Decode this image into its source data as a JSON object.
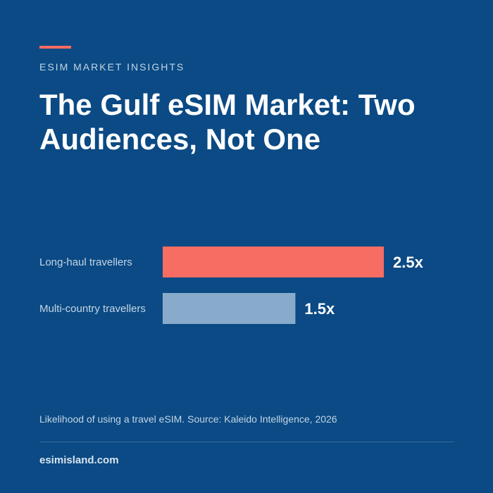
{
  "header": {
    "eyebrow": "ESIM MARKET INSIGHTS",
    "title": "The Gulf eSIM Market: Two Audiences, Not One"
  },
  "caption": "Likelihood of using a travel eSIM. Source: Kaleido Intelligence, 2026",
  "footer": {
    "site": "esimisland.com"
  },
  "colors": {
    "background": "#0b4a84",
    "accent": "#f76c63",
    "secondary_bar": "#89abcb",
    "muted_text": "#c3d5e6"
  },
  "chart_data": {
    "type": "bar",
    "orientation": "horizontal",
    "categories": [
      "Long-haul travellers",
      "Multi-country travellers"
    ],
    "values": [
      2.5,
      1.5
    ],
    "value_labels": [
      "2.5x",
      "1.5x"
    ],
    "bar_colors": [
      "#f76c63",
      "#89abcb"
    ],
    "title": "",
    "xlabel": "",
    "ylabel": "",
    "xlim": [
      0,
      2.5
    ],
    "grid": false
  }
}
